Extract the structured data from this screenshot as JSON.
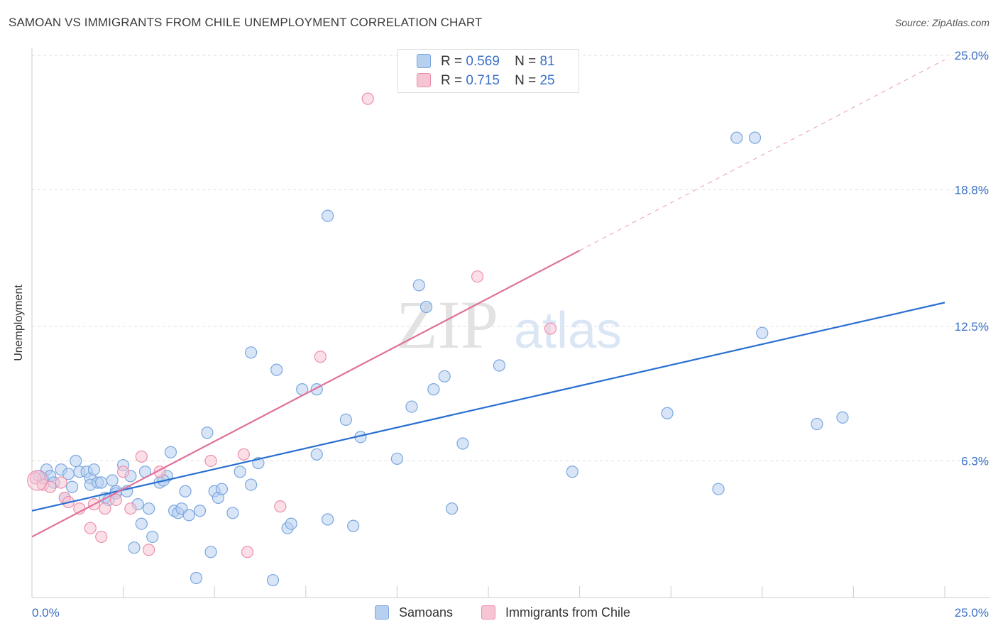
{
  "title": "SAMOAN VS IMMIGRANTS FROM CHILE UNEMPLOYMENT CORRELATION CHART",
  "source": "Source: ZipAtlas.com",
  "watermark": {
    "zip": "ZIP",
    "atlas": "atlas"
  },
  "legend": {
    "r_label": "R =",
    "n_label": "N =",
    "rows": [
      {
        "r": "0.569",
        "n": "81"
      },
      {
        "r": "0.715",
        "n": "25"
      }
    ]
  },
  "chart_data": {
    "type": "scatter",
    "title": "SAMOAN VS IMMIGRANTS FROM CHILE UNEMPLOYMENT CORRELATION CHART",
    "xlabel": "",
    "ylabel": "Unemployment",
    "xlim": [
      0,
      25
    ],
    "ylim": [
      0,
      25
    ],
    "x_tick_labels": [
      "0.0%",
      "25.0%"
    ],
    "y_tick_labels": [
      "25.0%",
      "18.8%",
      "12.5%",
      "6.3%"
    ],
    "y_tick_values": [
      25.0,
      18.8,
      12.5,
      6.3
    ],
    "x_minor_ticks": [
      0,
      2.5,
      5,
      7.5,
      10,
      12.5,
      15,
      17.5,
      20,
      22.5,
      25
    ],
    "grid": true,
    "legend_position": "bottom",
    "colors": {
      "samoans_fill": "#b8d0f0",
      "samoans_stroke": "#7aa6e0",
      "samoans_line": "#2a6fd1",
      "chile_fill": "#f7c4d3",
      "chile_stroke": "#ec8fab",
      "chile_line": "#e0709a",
      "tick_label": "#3a70c8",
      "grid": "#dddddd"
    },
    "series": [
      {
        "name": "Samoans",
        "regression": {
          "x": [
            0,
            25
          ],
          "y": [
            4.0,
            13.6
          ],
          "dashed": false
        },
        "points": [
          [
            0.3,
            5.5
          ],
          [
            0.4,
            5.9
          ],
          [
            0.5,
            5.6
          ],
          [
            0.6,
            5.3
          ],
          [
            0.8,
            5.9
          ],
          [
            0.9,
            4.6
          ],
          [
            1.0,
            5.7
          ],
          [
            1.1,
            5.1
          ],
          [
            1.2,
            6.3
          ],
          [
            1.3,
            5.8
          ],
          [
            1.5,
            5.8
          ],
          [
            1.6,
            5.5
          ],
          [
            1.6,
            5.2
          ],
          [
            1.8,
            5.3
          ],
          [
            1.9,
            5.3
          ],
          [
            2.0,
            4.6
          ],
          [
            2.1,
            4.5
          ],
          [
            2.2,
            5.4
          ],
          [
            2.3,
            4.9
          ],
          [
            2.3,
            4.8
          ],
          [
            2.5,
            6.1
          ],
          [
            2.6,
            4.9
          ],
          [
            2.7,
            5.6
          ],
          [
            2.8,
            2.3
          ],
          [
            2.9,
            4.3
          ],
          [
            3.0,
            3.4
          ],
          [
            3.1,
            5.8
          ],
          [
            3.2,
            4.1
          ],
          [
            3.3,
            2.8
          ],
          [
            3.5,
            5.3
          ],
          [
            3.7,
            5.6
          ],
          [
            3.8,
            6.7
          ],
          [
            3.9,
            4.0
          ],
          [
            4.0,
            3.9
          ],
          [
            4.1,
            4.1
          ],
          [
            4.2,
            4.9
          ],
          [
            4.3,
            3.8
          ],
          [
            4.5,
            0.9
          ],
          [
            4.6,
            4.0
          ],
          [
            4.8,
            7.6
          ],
          [
            4.9,
            2.1
          ],
          [
            5.0,
            4.9
          ],
          [
            5.1,
            4.6
          ],
          [
            5.2,
            5.0
          ],
          [
            5.5,
            3.9
          ],
          [
            5.7,
            5.8
          ],
          [
            6.0,
            5.2
          ],
          [
            6.0,
            11.3
          ],
          [
            6.2,
            6.2
          ],
          [
            6.6,
            0.8
          ],
          [
            6.7,
            10.5
          ],
          [
            7.0,
            3.2
          ],
          [
            7.1,
            3.4
          ],
          [
            7.4,
            9.6
          ],
          [
            7.8,
            6.6
          ],
          [
            7.8,
            9.6
          ],
          [
            8.1,
            3.6
          ],
          [
            8.1,
            17.6
          ],
          [
            8.6,
            8.2
          ],
          [
            8.8,
            3.3
          ],
          [
            9.0,
            7.4
          ],
          [
            10.0,
            6.4
          ],
          [
            10.4,
            8.8
          ],
          [
            10.6,
            14.4
          ],
          [
            10.8,
            13.4
          ],
          [
            11.0,
            9.6
          ],
          [
            11.3,
            10.2
          ],
          [
            11.5,
            4.1
          ],
          [
            11.8,
            7.1
          ],
          [
            12.8,
            10.7
          ],
          [
            14.8,
            5.8
          ],
          [
            17.4,
            8.5
          ],
          [
            18.8,
            5.0
          ],
          [
            19.3,
            21.2
          ],
          [
            19.8,
            21.2
          ],
          [
            20.0,
            12.2
          ],
          [
            21.5,
            8.0
          ],
          [
            22.2,
            8.3
          ],
          [
            0.2,
            5.6
          ],
          [
            1.7,
            5.9
          ],
          [
            3.6,
            5.4
          ]
        ]
      },
      {
        "name": "Immigrants from Chile",
        "regression": {
          "x": [
            0,
            15
          ],
          "y": [
            2.8,
            16.0
          ],
          "dashed_extension": {
            "x": [
              15,
              25
            ],
            "y": [
              16.0,
              24.8
            ]
          }
        },
        "points": [
          [
            0.1,
            5.5
          ],
          [
            0.3,
            5.2
          ],
          [
            0.5,
            5.1
          ],
          [
            0.8,
            5.3
          ],
          [
            0.9,
            4.6
          ],
          [
            1.0,
            4.4
          ],
          [
            1.3,
            4.1
          ],
          [
            1.6,
            3.2
          ],
          [
            1.7,
            4.3
          ],
          [
            1.9,
            2.8
          ],
          [
            2.0,
            4.1
          ],
          [
            2.3,
            4.5
          ],
          [
            2.5,
            5.8
          ],
          [
            2.7,
            4.1
          ],
          [
            3.0,
            6.5
          ],
          [
            3.2,
            2.2
          ],
          [
            3.5,
            5.8
          ],
          [
            4.9,
            6.3
          ],
          [
            5.8,
            6.6
          ],
          [
            5.9,
            2.1
          ],
          [
            6.8,
            4.2
          ],
          [
            7.9,
            11.1
          ],
          [
            9.2,
            23.0
          ],
          [
            12.2,
            14.8
          ],
          [
            14.2,
            12.4
          ]
        ]
      }
    ]
  },
  "bottom_legend": {
    "items": [
      "Samoans",
      "Immigrants from Chile"
    ]
  }
}
